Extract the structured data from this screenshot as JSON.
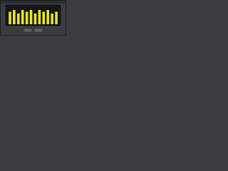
{
  "chart_data": {
    "type": "bar",
    "categories": [
      null,
      null,
      null,
      null,
      null,
      null,
      null,
      null,
      null,
      null,
      null,
      null
    ],
    "values": [
      7,
      8,
      6,
      8,
      7,
      8,
      6,
      8,
      7,
      8,
      6,
      7
    ],
    "color": "#e6e62e",
    "ylim": [
      0,
      10
    ]
  }
}
